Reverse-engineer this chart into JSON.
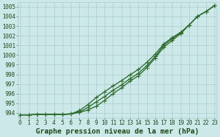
{
  "x": [
    0,
    1,
    2,
    3,
    4,
    5,
    6,
    7,
    8,
    9,
    10,
    11,
    12,
    13,
    14,
    15,
    16,
    17,
    18,
    19,
    20,
    21,
    22,
    23
  ],
  "line1": [
    993.8,
    993.8,
    993.85,
    993.85,
    993.85,
    993.85,
    993.9,
    994.05,
    994.3,
    994.7,
    995.3,
    996.0,
    996.6,
    997.3,
    997.85,
    998.7,
    999.7,
    1000.8,
    1001.5,
    1002.2,
    1003.1,
    1004.0,
    1004.5,
    1005.1
  ],
  "line2": [
    993.8,
    993.8,
    993.85,
    993.85,
    993.85,
    993.85,
    993.9,
    994.1,
    994.55,
    995.15,
    995.7,
    996.35,
    996.9,
    997.55,
    998.1,
    998.9,
    999.85,
    1001.0,
    1001.7,
    1002.3,
    1003.1,
    1004.0,
    1004.5,
    1005.1
  ],
  "line3": [
    993.8,
    993.8,
    993.85,
    993.85,
    993.85,
    993.85,
    993.9,
    994.25,
    994.85,
    995.6,
    996.2,
    996.8,
    997.35,
    997.95,
    998.5,
    999.25,
    1000.1,
    1001.15,
    1001.8,
    1002.35,
    1003.1,
    1004.0,
    1004.5,
    1005.1
  ],
  "ylim": [
    993.5,
    1005.5
  ],
  "yticks": [
    994,
    995,
    996,
    997,
    998,
    999,
    1000,
    1001,
    1002,
    1003,
    1004,
    1005
  ],
  "xticks": [
    0,
    1,
    2,
    3,
    4,
    5,
    6,
    7,
    8,
    9,
    10,
    11,
    12,
    13,
    14,
    15,
    16,
    17,
    18,
    19,
    20,
    21,
    22,
    23
  ],
  "xlabel": "Graphe pression niveau de la mer (hPa)",
  "bg_color": "#cce8e8",
  "grid_color": "#aacccc",
  "line_color": "#2d6b2d",
  "marker": "+",
  "line_width": 1.0,
  "marker_size": 4,
  "font_color": "#1a4a1a",
  "tick_fontsize": 5.8,
  "xlabel_fontsize": 7.5
}
